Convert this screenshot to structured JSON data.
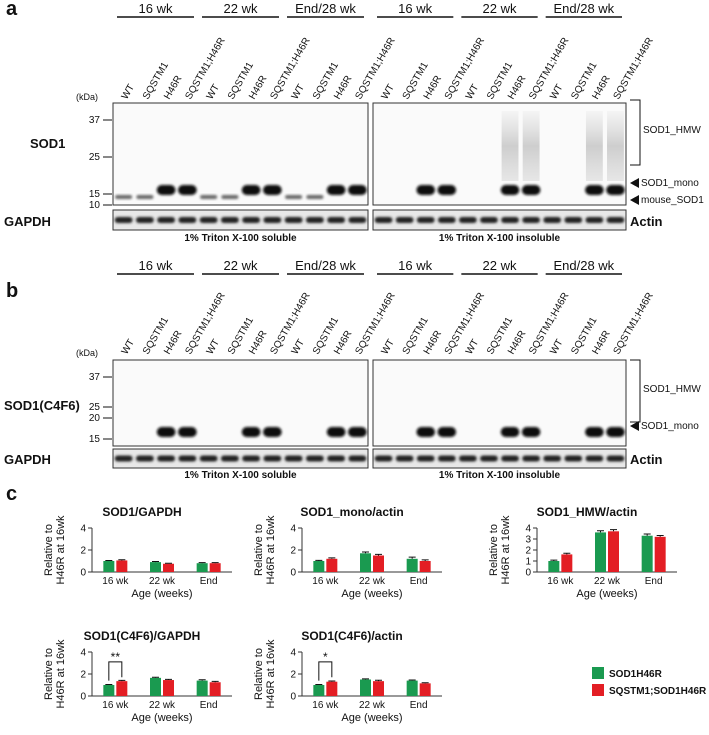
{
  "panels": [
    {
      "label": "a",
      "groups": [
        "16 wk",
        "22 wk",
        "End/28 wk"
      ],
      "lanes": [
        "WT",
        "SQSTM1",
        "H46R",
        "SQSTM1;H46R"
      ],
      "kda": "(kDa)",
      "markers": [
        "37",
        "25",
        "15",
        "10"
      ],
      "protein": "SOD1",
      "loading": "GAPDH",
      "loading_right": "Actin",
      "fractions": [
        "1% Triton X-100 soluble",
        "1% Triton X-100 insoluble"
      ],
      "bands": [
        "SOD1_HMW",
        "SOD1_mono",
        "mouse_SOD1"
      ]
    },
    {
      "label": "b",
      "groups": [
        "16 wk",
        "22 wk",
        "End/28 wk"
      ],
      "lanes": [
        "WT",
        "SQSTM1",
        "H46R",
        "SQSTM1;H46R"
      ],
      "kda": "(kDa)",
      "markers": [
        "37",
        "25",
        "20",
        "15"
      ],
      "protein": "SOD1(C4F6)",
      "loading": "GAPDH",
      "loading_right": "Actin",
      "fractions": [
        "1% Triton X-100 soluble",
        "1% Triton X-100 insoluble"
      ],
      "bands": [
        "SOD1_HMW",
        "SOD1_mono"
      ]
    }
  ],
  "panel_c_label": "c",
  "chart_data": [
    {
      "type": "bar",
      "title": "SOD1/GAPDH",
      "categories": [
        "16 wk",
        "22 wk",
        "End"
      ],
      "xlabel": "Age (weeks)",
      "ylabel": [
        "Relative to",
        "H46R at 16wk"
      ],
      "ylim": [
        0,
        4
      ],
      "yticks": [
        0,
        2,
        4
      ],
      "series": [
        {
          "name": "SOD1H46R",
          "color": "#1a9a50",
          "values": [
            1,
            0.9,
            0.8
          ],
          "errors": [
            0.05,
            0.06,
            0.05
          ]
        },
        {
          "name": "SQSTM1;SOD1H46R",
          "color": "#e31e24",
          "values": [
            1.05,
            0.75,
            0.8
          ],
          "errors": [
            0.06,
            0.05,
            0.05
          ]
        }
      ]
    },
    {
      "type": "bar",
      "title": "SOD1_mono/actin",
      "categories": [
        "16 wk",
        "22 wk",
        "End"
      ],
      "xlabel": "Age (weeks)",
      "ylabel": [
        "Relative to",
        "H46R at 16wk"
      ],
      "ylim": [
        0,
        4
      ],
      "yticks": [
        0,
        2,
        4
      ],
      "series": [
        {
          "name": "SOD1H46R",
          "color": "#1a9a50",
          "values": [
            1,
            1.7,
            1.2
          ],
          "errors": [
            0.06,
            0.12,
            0.15
          ]
        },
        {
          "name": "SQSTM1;SOD1H46R",
          "color": "#e31e24",
          "values": [
            1.2,
            1.5,
            1.0
          ],
          "errors": [
            0.08,
            0.1,
            0.1
          ]
        }
      ]
    },
    {
      "type": "bar",
      "title": "SOD1_HMW/actin",
      "categories": [
        "16 wk",
        "22 wk",
        "End"
      ],
      "xlabel": "Age (weeks)",
      "ylabel": [
        "Relative to",
        "H46R at 16wk"
      ],
      "ylim": [
        0,
        4
      ],
      "yticks": [
        0,
        1,
        2,
        3,
        4
      ],
      "series": [
        {
          "name": "SOD1H46R",
          "color": "#1a9a50",
          "values": [
            1,
            3.6,
            3.3
          ],
          "errors": [
            0.08,
            0.15,
            0.15
          ]
        },
        {
          "name": "SQSTM1;SOD1H46R",
          "color": "#e31e24",
          "values": [
            1.6,
            3.7,
            3.2
          ],
          "errors": [
            0.1,
            0.15,
            0.12
          ]
        }
      ]
    },
    {
      "type": "bar",
      "title": "SOD1(C4F6)/GAPDH",
      "categories": [
        "16 wk",
        "22 wk",
        "End"
      ],
      "xlabel": "Age (weeks)",
      "ylabel": [
        "Relative to",
        "H46R at 16wk"
      ],
      "ylim": [
        0,
        4
      ],
      "yticks": [
        0,
        2,
        4
      ],
      "annotation": "**",
      "series": [
        {
          "name": "SOD1H46R",
          "color": "#1a9a50",
          "values": [
            1,
            1.65,
            1.4
          ],
          "errors": [
            0.05,
            0.06,
            0.08
          ]
        },
        {
          "name": "SQSTM1;SOD1H46R",
          "color": "#e31e24",
          "values": [
            1.35,
            1.45,
            1.25
          ],
          "errors": [
            0.07,
            0.06,
            0.08
          ]
        }
      ]
    },
    {
      "type": "bar",
      "title": "SOD1(C4F6)/actin",
      "categories": [
        "16 wk",
        "22 wk",
        "End"
      ],
      "xlabel": "Age (weeks)",
      "ylabel": [
        "Relative to",
        "H46R at 16wk"
      ],
      "ylim": [
        0,
        4
      ],
      "yticks": [
        0,
        2,
        4
      ],
      "annotation": "*",
      "series": [
        {
          "name": "SOD1H46R",
          "color": "#1a9a50",
          "values": [
            1,
            1.5,
            1.4
          ],
          "errors": [
            0.05,
            0.06,
            0.06
          ]
        },
        {
          "name": "SQSTM1;SOD1H46R",
          "color": "#e31e24",
          "values": [
            1.3,
            1.35,
            1.15
          ],
          "errors": [
            0.06,
            0.08,
            0.06
          ]
        }
      ]
    }
  ]
}
